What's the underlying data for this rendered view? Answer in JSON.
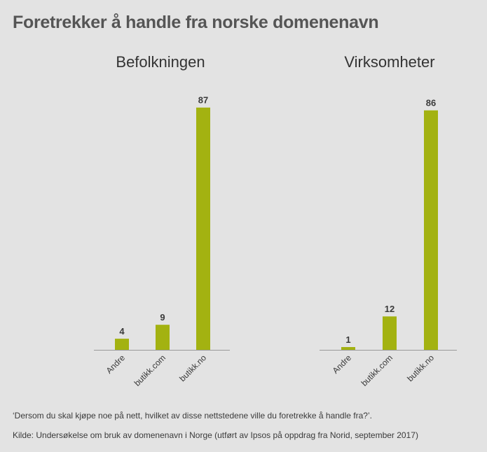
{
  "title": "Foretrekker å handle fra norske domenenavn",
  "chart_data": [
    {
      "type": "bar",
      "title": "Befolkningen",
      "categories": [
        "Andre",
        "butikk.com",
        "butikk.no"
      ],
      "values": [
        4,
        9,
        87
      ],
      "ylim": [
        0,
        100
      ],
      "grid": false,
      "color": "#a3b211"
    },
    {
      "type": "bar",
      "title": "Virksomheter",
      "categories": [
        "Andre",
        "butikk.com",
        "butikk.no"
      ],
      "values": [
        1,
        12,
        86
      ],
      "ylim": [
        0,
        100
      ],
      "grid": false,
      "color": "#a3b211"
    }
  ],
  "footnote": {
    "question": "‘Dersom du skal kjøpe noe på nett, hvilket av disse nettstedene ville du foretrekke å handle fra?’.",
    "source": "Kilde: Undersøkelse om bruk av domenenavn i Norge (utført av Ipsos på oppdrag fra Norid, september 2017)"
  }
}
